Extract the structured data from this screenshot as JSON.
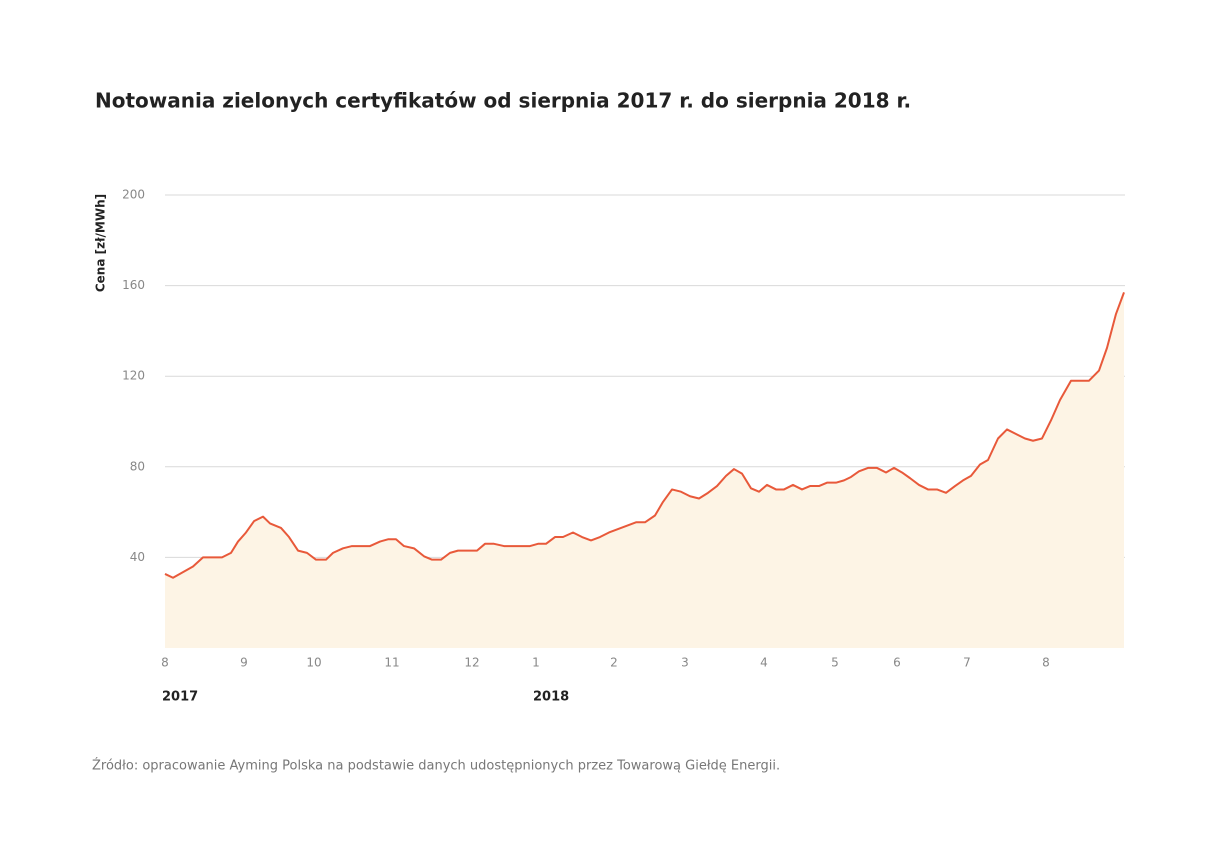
{
  "chart_data": {
    "type": "area",
    "title": "Notowania zielonych certyfikatów od sierpnia 2017 r. do sierpnia 2018 r.",
    "y_label": "Cena [zł/MWh]",
    "source": "Źródło: opracowanie Ayming Polska na podstawie danych udostępnionych przez Towarową Giełdę Energii.",
    "x": [
      0,
      8,
      16,
      28,
      38,
      47,
      57,
      66,
      73,
      81,
      89,
      98,
      105,
      116,
      124,
      133,
      142,
      151,
      161,
      168,
      178,
      187,
      196,
      205,
      215,
      223,
      231,
      239,
      249,
      259,
      267,
      276,
      285,
      293,
      302,
      312,
      320,
      329,
      339,
      349,
      357,
      365,
      373,
      381,
      390,
      398,
      408,
      417,
      426,
      435,
      444,
      453,
      462,
      471,
      480,
      490,
      498,
      507,
      516,
      525,
      534,
      543,
      552,
      561,
      569,
      577,
      586,
      594,
      602,
      611,
      619,
      628,
      637,
      645,
      654,
      662,
      671,
      679,
      686,
      694,
      703,
      712,
      721,
      729,
      737,
      745,
      754,
      763,
      772,
      781,
      790,
      798,
      806,
      815,
      823,
      833,
      842,
      851,
      860,
      868,
      877,
      886,
      895,
      906,
      915,
      924,
      934,
      942,
      951,
      959
    ],
    "series": [
      {
        "name": "Cena",
        "color": "#e8593a",
        "fill": "#fdf4e5",
        "values": [
          32.7,
          31,
          33,
          36,
          40,
          40,
          40,
          42,
          47,
          51,
          56,
          58,
          55,
          53,
          49,
          43,
          42,
          39,
          39,
          42,
          44,
          45,
          45,
          45,
          47,
          48,
          48,
          45,
          44,
          40.5,
          39,
          39,
          42,
          43,
          43,
          43,
          46,
          46,
          45,
          45,
          45,
          45,
          46,
          46,
          49,
          49,
          51,
          49,
          47.5,
          49,
          51,
          52.5,
          54,
          55.5,
          55.5,
          58.5,
          64.5,
          70,
          69,
          67,
          66,
          68.5,
          71.5,
          76,
          79,
          77,
          70.5,
          69,
          72,
          70,
          70,
          72,
          70,
          71.5,
          71.5,
          73,
          73,
          74,
          75.5,
          78,
          79.5,
          79.5,
          77.5,
          79.5,
          77.5,
          75,
          72,
          70,
          70,
          68.5,
          71.5,
          74,
          76,
          81,
          83,
          92.5,
          96.5,
          94.5,
          92.5,
          91.5,
          92.5,
          100.5,
          109.5,
          118,
          118,
          118,
          122.5,
          132.5,
          147.5,
          157
        ]
      }
    ],
    "xlim": [
      0,
      960
    ],
    "xticks": [
      {
        "value": 0,
        "label": "8"
      },
      {
        "value": 79,
        "label": "9"
      },
      {
        "value": 149,
        "label": "10"
      },
      {
        "value": 227,
        "label": "11"
      },
      {
        "value": 307,
        "label": "12"
      },
      {
        "value": 371,
        "label": "1"
      },
      {
        "value": 449,
        "label": "2"
      },
      {
        "value": 520,
        "label": "3"
      },
      {
        "value": 599,
        "label": "4"
      },
      {
        "value": 670,
        "label": "5"
      },
      {
        "value": 732,
        "label": "6"
      },
      {
        "value": 802,
        "label": "7"
      },
      {
        "value": 881,
        "label": "8"
      }
    ],
    "year_labels": [
      {
        "value": 0,
        "label": "2017"
      },
      {
        "value": 371,
        "label": "2018"
      }
    ],
    "ylim": [
      0,
      200
    ],
    "yticks": [
      40,
      80,
      120,
      160,
      200
    ],
    "grid": true
  }
}
